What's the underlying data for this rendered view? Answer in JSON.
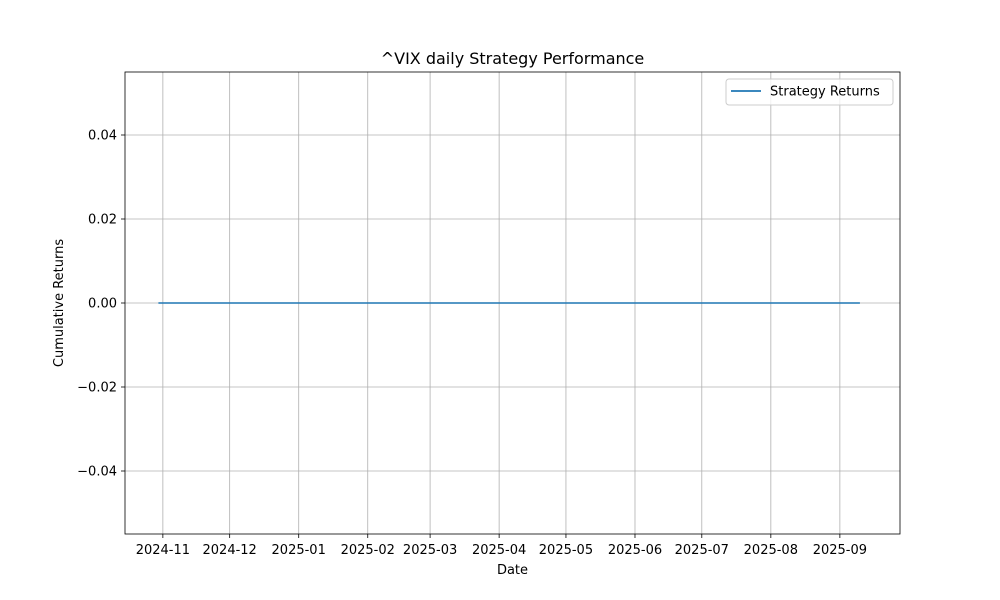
{
  "chart_data": {
    "type": "line",
    "title": "^VIX daily Strategy Performance",
    "xlabel": "Date",
    "ylabel": "Cumulative Returns",
    "x_type": "date",
    "xlim": [
      "2024-10-15",
      "2025-09-28"
    ],
    "ylim": [
      -0.055,
      0.055
    ],
    "x_ticks": [
      "2024-11-01",
      "2024-12-01",
      "2025-01-01",
      "2025-02-01",
      "2025-03-01",
      "2025-04-01",
      "2025-05-01",
      "2025-06-01",
      "2025-07-01",
      "2025-08-01",
      "2025-09-01"
    ],
    "x_tick_labels": [
      "2024-11",
      "2024-12",
      "2025-01",
      "2025-02",
      "2025-03",
      "2025-04",
      "2025-05",
      "2025-06",
      "2025-07",
      "2025-08",
      "2025-09"
    ],
    "y_ticks": [
      -0.04,
      -0.02,
      0.0,
      0.02,
      0.04
    ],
    "y_tick_labels": [
      "−0.04",
      "−0.02",
      "0.00",
      "0.02",
      "0.04"
    ],
    "grid": true,
    "legend_position": "upper right",
    "series": [
      {
        "name": "Strategy Returns",
        "color": "#1f77b4",
        "x": [
          "2024-10-30",
          "2025-09-10"
        ],
        "y": [
          0.0,
          0.0
        ]
      }
    ]
  }
}
